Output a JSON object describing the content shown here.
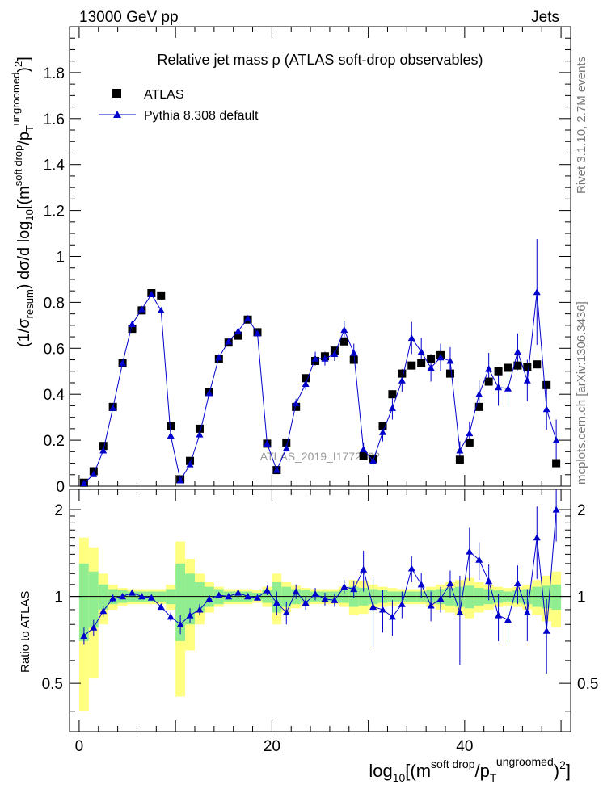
{
  "header": {
    "energy_label": "13000 GeV pp",
    "process_label": "Jets",
    "title": "Relative jet mass  ρ (ATLAS soft-drop observables)",
    "watermark": "ATLAS_2019_I1772062",
    "side_label_top": "Rivet 3.1.10,  2.7M events",
    "side_label_bottom": "mcplots.cern.ch [arXiv:1306.3436]"
  },
  "legend": {
    "data_label": "ATLAS",
    "mc_label": "Pythia 8.308 default"
  },
  "colors": {
    "data": "#000000",
    "mc": "#0000cc",
    "band_inner": "#90ee90",
    "band_outer": "#ffff80"
  },
  "chart_data": [
    {
      "type": "scatter",
      "panel": "main",
      "ylabel": "(1/σresum) dσ/d log10[(m soft drop/pT ungroomed)2]",
      "xlim": [
        -1,
        51
      ],
      "ylim": [
        0,
        2.0
      ],
      "yticks": [
        0,
        0.2,
        0.4,
        0.6,
        0.8,
        1,
        1.2,
        1.4,
        1.6,
        1.8
      ],
      "ytick_labels": [
        "0",
        "0.2",
        "0.4",
        "0.6",
        "0.8",
        "1",
        "1.2",
        "1.4",
        "1.6",
        "1.8"
      ],
      "x": [
        0.5,
        1.5,
        2.5,
        3.5,
        4.5,
        5.5,
        6.5,
        7.5,
        8.5,
        9.5,
        10.5,
        11.5,
        12.5,
        13.5,
        14.5,
        15.5,
        16.5,
        17.5,
        18.5,
        19.5,
        20.5,
        21.5,
        22.5,
        23.5,
        24.5,
        25.5,
        26.5,
        27.5,
        28.5,
        29.5,
        30.5,
        31.5,
        32.5,
        33.5,
        34.5,
        35.5,
        36.5,
        37.5,
        38.5,
        39.5,
        40.5,
        41.5,
        42.5,
        43.5,
        44.5,
        45.5,
        46.5,
        47.5,
        48.5,
        49.5
      ],
      "series": [
        {
          "name": "ATLAS",
          "marker": "square",
          "values": [
            0.015,
            0.065,
            0.175,
            0.345,
            0.535,
            0.685,
            0.765,
            0.84,
            0.83,
            0.26,
            0.03,
            0.11,
            0.25,
            0.41,
            0.555,
            0.625,
            0.655,
            0.725,
            0.67,
            0.185,
            0.07,
            0.19,
            0.345,
            0.47,
            0.545,
            0.565,
            0.59,
            0.63,
            0.55,
            0.13,
            0.12,
            0.26,
            0.4,
            0.49,
            0.525,
            0.535,
            0.555,
            0.57,
            0.49,
            0.115,
            0.19,
            0.345,
            0.455,
            0.5,
            0.515,
            0.525,
            0.52,
            0.53,
            0.44,
            0.1
          ]
        },
        {
          "name": "Pythia 8.308 default",
          "marker": "triangle",
          "values": [
            0.012,
            0.052,
            0.155,
            0.34,
            0.535,
            0.705,
            0.77,
            0.835,
            0.765,
            0.22,
            0.025,
            0.095,
            0.225,
            0.405,
            0.56,
            0.63,
            0.675,
            0.73,
            0.665,
            0.185,
            0.07,
            0.165,
            0.36,
            0.445,
            0.555,
            0.555,
            0.575,
            0.68,
            0.58,
            0.16,
            0.11,
            0.235,
            0.34,
            0.46,
            0.645,
            0.585,
            0.515,
            0.56,
            0.545,
            0.155,
            0.23,
            0.4,
            0.51,
            0.43,
            0.425,
            0.585,
            0.46,
            0.845,
            0.335,
            0.2
          ],
          "errors": [
            0.003,
            0.005,
            0.008,
            0.01,
            0.012,
            0.012,
            0.012,
            0.012,
            0.012,
            0.008,
            0.003,
            0.005,
            0.008,
            0.01,
            0.012,
            0.012,
            0.012,
            0.012,
            0.012,
            0.008,
            0.006,
            0.015,
            0.02,
            0.025,
            0.03,
            0.03,
            0.03,
            0.04,
            0.04,
            0.03,
            0.03,
            0.04,
            0.05,
            0.05,
            0.07,
            0.06,
            0.06,
            0.06,
            0.06,
            0.04,
            0.05,
            0.06,
            0.07,
            0.08,
            0.08,
            0.08,
            0.09,
            0.23,
            0.09,
            0.09
          ]
        }
      ]
    },
    {
      "type": "scatter",
      "panel": "ratio",
      "xlabel": "log10[(m soft drop/pT ungroomed)2]",
      "ylabel": "Ratio to ATLAS",
      "xlim": [
        -1,
        51
      ],
      "ylim": [
        0.34,
        2.35
      ],
      "yticks": [
        0.5,
        1,
        2
      ],
      "ytick_labels": [
        "0.5",
        "1",
        "2"
      ],
      "xticks": [
        0,
        20,
        40
      ],
      "xtick_labels": [
        "0",
        "20",
        "40"
      ],
      "x": [
        0.5,
        1.5,
        2.5,
        3.5,
        4.5,
        5.5,
        6.5,
        7.5,
        8.5,
        9.5,
        10.5,
        11.5,
        12.5,
        13.5,
        14.5,
        15.5,
        16.5,
        17.5,
        18.5,
        19.5,
        20.5,
        21.5,
        22.5,
        23.5,
        24.5,
        25.5,
        26.5,
        27.5,
        28.5,
        29.5,
        30.5,
        31.5,
        32.5,
        33.5,
        34.5,
        35.5,
        36.5,
        37.5,
        38.5,
        39.5,
        40.5,
        41.5,
        42.5,
        43.5,
        44.5,
        45.5,
        46.5,
        47.5,
        48.5,
        49.5
      ],
      "series": [
        {
          "name": "Pythia 8.308 default",
          "values": [
            0.73,
            0.78,
            0.89,
            0.985,
            1.0,
            1.03,
            1.0,
            0.99,
            0.92,
            0.85,
            0.8,
            0.86,
            0.9,
            0.98,
            1.01,
            1.0,
            1.03,
            1.0,
            0.99,
            1.05,
            0.95,
            0.88,
            1.04,
            0.95,
            1.02,
            0.98,
            0.97,
            1.08,
            1.06,
            1.24,
            0.92,
            0.9,
            0.85,
            0.94,
            1.25,
            1.1,
            0.93,
            0.98,
            1.11,
            0.88,
            1.43,
            1.34,
            1.13,
            0.86,
            0.83,
            1.11,
            0.88,
            1.6,
            0.76,
            2.0
          ],
          "errors": [
            0.05,
            0.05,
            0.04,
            0.03,
            0.02,
            0.02,
            0.02,
            0.02,
            0.02,
            0.03,
            0.06,
            0.05,
            0.04,
            0.03,
            0.02,
            0.02,
            0.02,
            0.02,
            0.02,
            0.04,
            0.09,
            0.08,
            0.06,
            0.05,
            0.05,
            0.05,
            0.05,
            0.06,
            0.07,
            0.2,
            0.25,
            0.15,
            0.12,
            0.1,
            0.13,
            0.11,
            0.11,
            0.1,
            0.12,
            0.3,
            0.3,
            0.2,
            0.16,
            0.16,
            0.15,
            0.17,
            0.18,
            0.45,
            0.22,
            0.45
          ]
        }
      ],
      "band_inner": [
        0.3,
        0.22,
        0.1,
        0.06,
        0.05,
        0.04,
        0.04,
        0.04,
        0.04,
        0.06,
        0.3,
        0.2,
        0.12,
        0.08,
        0.06,
        0.04,
        0.04,
        0.04,
        0.03,
        0.05,
        0.12,
        0.08,
        0.06,
        0.05,
        0.04,
        0.04,
        0.04,
        0.05,
        0.08,
        0.07,
        0.06,
        0.05,
        0.04,
        0.04,
        0.04,
        0.04,
        0.05,
        0.06,
        0.07,
        0.08,
        0.09,
        0.07,
        0.06,
        0.05,
        0.04,
        0.05,
        0.06,
        0.08,
        0.09,
        0.1
      ],
      "band_outer": [
        0.6,
        0.48,
        0.2,
        0.1,
        0.07,
        0.06,
        0.06,
        0.06,
        0.06,
        0.1,
        0.55,
        0.35,
        0.2,
        0.12,
        0.08,
        0.06,
        0.06,
        0.06,
        0.05,
        0.08,
        0.2,
        0.12,
        0.09,
        0.07,
        0.06,
        0.06,
        0.06,
        0.08,
        0.14,
        0.13,
        0.1,
        0.08,
        0.07,
        0.06,
        0.06,
        0.06,
        0.08,
        0.1,
        0.12,
        0.14,
        0.16,
        0.12,
        0.1,
        0.08,
        0.07,
        0.08,
        0.1,
        0.14,
        0.18,
        0.22
      ]
    }
  ]
}
